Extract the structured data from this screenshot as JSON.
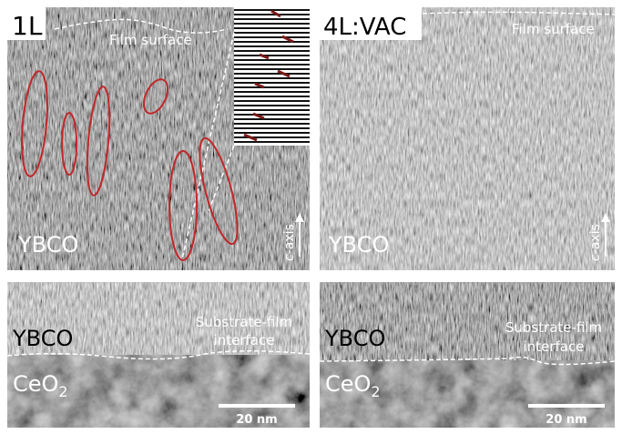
{
  "panels": [
    {
      "label": "1L",
      "annotation": "Film surface",
      "material": "YBCO",
      "axis": {
        "symbol": "c",
        "text": "-axis"
      }
    },
    {
      "label": "4L:VAC",
      "annotation": "Film surface",
      "material": "YBCO",
      "axis": {
        "symbol": "c",
        "text": "-axis"
      }
    }
  ],
  "bottom_panels": [
    {
      "top_material": "YBCO",
      "interface": [
        "Substrate-film",
        "interface"
      ],
      "substrate": {
        "base": "CeO",
        "subscript": "2"
      },
      "scale_bar": "20 nm"
    },
    {
      "top_material": "YBCO",
      "interface": [
        "Substrate-film",
        "interface"
      ],
      "substrate": {
        "base": "CeO",
        "subscript": "2"
      },
      "scale_bar": "20 nm"
    }
  ]
}
